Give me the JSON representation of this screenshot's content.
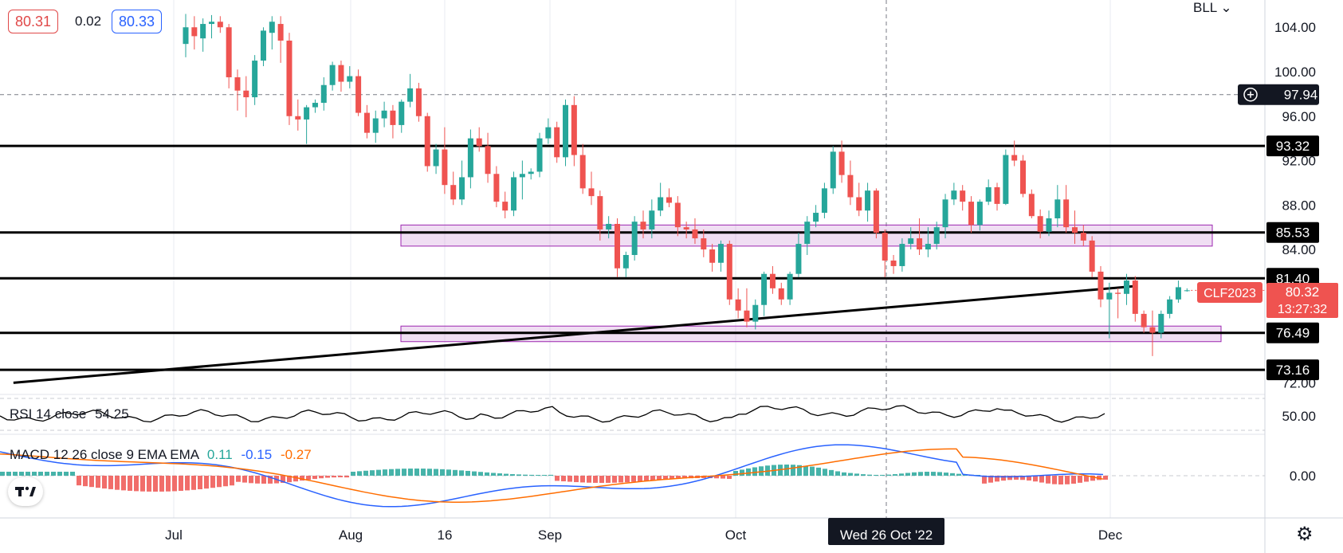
{
  "header": {
    "price_left": "80.31",
    "change": "0.02",
    "price_right": "80.33",
    "colors": {
      "bid": "#e04848",
      "ask": "#2962ff"
    }
  },
  "symbol_menu": "BLL",
  "rsi": {
    "label": "RSI 14 close",
    "value": "54.25",
    "color": "#000000"
  },
  "macd": {
    "label": "MACD 12 26 close 9 EMA EMA",
    "hist": "0.11",
    "macd": "-0.15",
    "signal": "-0.27",
    "colors": {
      "hist": "#26a69a",
      "macd": "#2962ff",
      "signal": "#ff6d00"
    }
  },
  "crosshair_date": "Wed 26 Oct '22",
  "chart_data": {
    "type": "candlestick",
    "symbol": "CLF2023",
    "countdown": "13:27:32",
    "last_price": "80.32",
    "crosshair_price": "97.94",
    "price_axis": {
      "labels": [
        "104.00",
        "100.00",
        "96.00",
        "92.00",
        "88.00",
        "84.00",
        "80.00",
        "76.00",
        "72.00"
      ]
    },
    "time_axis": {
      "labels": [
        "Jul",
        "Aug",
        "16",
        "Sep",
        "Oct",
        "Dec"
      ]
    },
    "levels": [
      "93.32",
      "85.53",
      "81.40",
      "76.49",
      "73.16"
    ],
    "zones": [
      {
        "from": 84.3,
        "to": 86.2
      },
      {
        "from": 75.7,
        "to": 77.1
      }
    ],
    "trendline": {
      "from": {
        "date": "2022-06-04",
        "price": 72.0
      },
      "to": {
        "date": "2022-12-10",
        "price": 80.7
      }
    },
    "candles": [
      [
        102.5,
        105.2,
        101.3,
        104.0
      ],
      [
        104.0,
        105.0,
        102.0,
        103.2
      ],
      [
        103.0,
        104.8,
        101.8,
        104.3
      ],
      [
        104.3,
        105.1,
        103.0,
        104.5
      ],
      [
        104.5,
        105.0,
        103.5,
        104.0
      ],
      [
        104.0,
        104.3,
        98.5,
        99.5
      ],
      [
        99.5,
        100.2,
        96.5,
        98.3
      ],
      [
        98.3,
        99.6,
        95.9,
        97.7
      ],
      [
        97.7,
        101.5,
        97.0,
        101.0
      ],
      [
        101.0,
        104.0,
        100.5,
        103.7
      ],
      [
        103.5,
        105.0,
        102.0,
        104.5
      ],
      [
        104.3,
        105.0,
        100.8,
        102.8
      ],
      [
        102.8,
        103.5,
        95.2,
        96.0
      ],
      [
        96.0,
        97.5,
        94.7,
        95.7
      ],
      [
        95.7,
        97.0,
        93.5,
        96.8
      ],
      [
        96.8,
        97.5,
        96.3,
        97.2
      ],
      [
        97.2,
        99.5,
        96.5,
        98.8
      ],
      [
        98.8,
        100.9,
        98.3,
        100.6
      ],
      [
        100.6,
        101.0,
        98.2,
        99.1
      ],
      [
        99.1,
        100.5,
        98.5,
        99.6
      ],
      [
        99.6,
        100.2,
        96.0,
        96.3
      ],
      [
        96.3,
        97.0,
        94.0,
        94.5
      ],
      [
        94.5,
        96.5,
        93.6,
        95.8
      ],
      [
        95.8,
        97.3,
        95.0,
        96.5
      ],
      [
        96.5,
        97.0,
        94.0,
        95.2
      ],
      [
        95.2,
        97.5,
        94.5,
        97.3
      ],
      [
        97.3,
        99.8,
        96.8,
        98.5
      ],
      [
        98.5,
        99.0,
        95.5,
        96.0
      ],
      [
        96.0,
        96.3,
        91.0,
        91.5
      ],
      [
        91.5,
        93.5,
        90.8,
        93.0
      ],
      [
        93.0,
        95.0,
        89.0,
        89.8
      ],
      [
        89.8,
        91.0,
        88.0,
        88.5
      ],
      [
        88.5,
        92.0,
        88.0,
        90.5
      ],
      [
        90.5,
        94.8,
        89.5,
        94.0
      ],
      [
        94.0,
        95.0,
        92.8,
        93.3
      ],
      [
        93.3,
        94.5,
        90.0,
        90.8
      ],
      [
        90.8,
        91.5,
        87.8,
        88.3
      ],
      [
        88.3,
        89.2,
        86.8,
        87.5
      ],
      [
        87.5,
        91.0,
        87.0,
        90.5
      ],
      [
        90.5,
        92.0,
        88.5,
        90.8
      ],
      [
        90.8,
        91.3,
        90.3,
        91.0
      ],
      [
        91.0,
        94.5,
        90.5,
        94.0
      ],
      [
        94.0,
        95.8,
        93.5,
        95.0
      ],
      [
        95.0,
        95.5,
        91.8,
        92.3
      ],
      [
        92.3,
        97.5,
        91.5,
        97.0
      ],
      [
        97.0,
        97.8,
        91.5,
        92.5
      ],
      [
        92.5,
        93.5,
        89.0,
        89.5
      ],
      [
        89.5,
        91.0,
        88.0,
        88.8
      ],
      [
        88.8,
        89.3,
        84.8,
        85.8
      ],
      [
        85.8,
        87.0,
        85.0,
        86.3
      ],
      [
        86.3,
        86.8,
        81.5,
        82.3
      ],
      [
        82.3,
        83.8,
        81.5,
        83.5
      ],
      [
        83.5,
        87.0,
        83.0,
        86.5
      ],
      [
        86.5,
        87.5,
        85.0,
        85.8
      ],
      [
        85.8,
        88.5,
        85.0,
        87.5
      ],
      [
        87.5,
        90.0,
        87.0,
        88.7
      ],
      [
        88.7,
        89.5,
        87.8,
        88.2
      ],
      [
        88.2,
        88.8,
        85.2,
        86.0
      ],
      [
        86.0,
        86.5,
        85.0,
        85.8
      ],
      [
        85.8,
        86.8,
        84.5,
        85.0
      ],
      [
        85.0,
        85.8,
        83.3,
        84.0
      ],
      [
        84.0,
        84.5,
        82.0,
        82.8
      ],
      [
        82.8,
        84.8,
        82.0,
        84.5
      ],
      [
        84.5,
        84.8,
        79.0,
        79.5
      ],
      [
        79.5,
        80.5,
        77.8,
        78.5
      ],
      [
        78.5,
        80.5,
        77.0,
        77.5
      ],
      [
        77.5,
        79.5,
        76.8,
        79.0
      ],
      [
        79.0,
        82.0,
        78.0,
        81.8
      ],
      [
        81.8,
        82.5,
        80.0,
        80.5
      ],
      [
        80.5,
        81.0,
        79.0,
        79.5
      ],
      [
        79.5,
        82.0,
        79.0,
        81.8
      ],
      [
        81.8,
        85.5,
        81.5,
        84.5
      ],
      [
        84.5,
        87.0,
        83.5,
        86.5
      ],
      [
        86.5,
        88.0,
        86.0,
        87.3
      ],
      [
        87.3,
        90.0,
        86.8,
        89.5
      ],
      [
        89.5,
        93.3,
        89.0,
        92.8
      ],
      [
        92.8,
        93.8,
        90.0,
        90.7
      ],
      [
        90.7,
        92.0,
        88.0,
        88.7
      ],
      [
        88.7,
        90.0,
        87.0,
        87.5
      ],
      [
        87.5,
        90.0,
        86.5,
        89.3
      ],
      [
        89.3,
        89.5,
        85.0,
        85.5
      ],
      [
        85.5,
        85.8,
        81.5,
        83.0
      ],
      [
        83.0,
        83.5,
        81.8,
        82.5
      ],
      [
        82.5,
        85.0,
        82.0,
        84.5
      ],
      [
        84.5,
        86.0,
        84.0,
        85.0
      ],
      [
        85.0,
        86.8,
        83.5,
        84.0
      ],
      [
        84.0,
        86.0,
        83.3,
        84.5
      ],
      [
        84.5,
        86.5,
        84.0,
        86.0
      ],
      [
        86.0,
        89.0,
        85.0,
        88.5
      ],
      [
        88.5,
        90.0,
        88.0,
        89.3
      ],
      [
        89.3,
        89.8,
        87.5,
        88.3
      ],
      [
        88.3,
        88.8,
        85.5,
        86.2
      ],
      [
        86.2,
        88.5,
        85.7,
        88.3
      ],
      [
        88.3,
        90.3,
        88.0,
        89.6
      ],
      [
        89.6,
        90.0,
        87.5,
        88.1
      ],
      [
        88.1,
        93.0,
        88.0,
        92.5
      ],
      [
        92.5,
        93.8,
        91.5,
        92.0
      ],
      [
        92.0,
        92.5,
        88.7,
        89.0
      ],
      [
        89.0,
        89.4,
        86.8,
        87.0
      ],
      [
        87.0,
        87.6,
        85.0,
        85.6
      ],
      [
        85.6,
        87.5,
        85.2,
        86.8
      ],
      [
        86.8,
        89.8,
        86.0,
        88.5
      ],
      [
        88.5,
        89.8,
        85.5,
        86.0
      ],
      [
        86.0,
        87.5,
        84.5,
        85.5
      ],
      [
        85.5,
        86.2,
        84.3,
        84.8
      ],
      [
        84.8,
        85.2,
        81.5,
        82.0
      ],
      [
        82.0,
        82.5,
        78.8,
        79.5
      ],
      [
        79.5,
        81.0,
        76.0,
        80.1
      ],
      [
        80.1,
        80.5,
        77.8,
        80.0
      ],
      [
        80.0,
        81.8,
        79.0,
        81.2
      ],
      [
        81.2,
        81.6,
        77.5,
        78.2
      ],
      [
        78.2,
        78.5,
        76.5,
        77.0
      ],
      [
        77.0,
        78.5,
        74.4,
        76.5
      ],
      [
        76.5,
        78.5,
        76.0,
        78.2
      ],
      [
        78.2,
        79.8,
        77.8,
        79.5
      ],
      [
        79.5,
        81.2,
        79.2,
        80.6
      ],
      [
        80.3,
        80.5,
        80.2,
        80.32
      ]
    ],
    "rsi_range": [
      30,
      70
    ],
    "macd_zero": "0.00"
  }
}
